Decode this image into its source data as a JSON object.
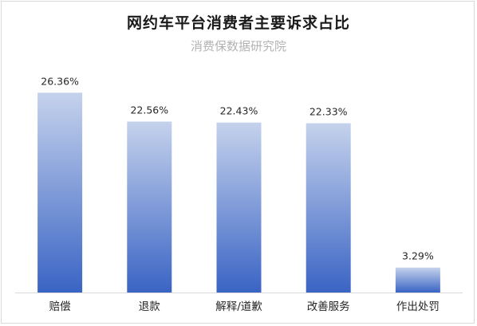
{
  "chart_data": {
    "type": "bar",
    "title": "网约车平台消费者主要诉求占比",
    "watermark": "消费保数据研究院",
    "categories": [
      "赔偿",
      "退款",
      "解释/道歉",
      "改善服务",
      "作出处罚"
    ],
    "values": [
      26.36,
      22.56,
      22.43,
      22.33,
      3.29
    ],
    "value_labels": [
      "26.36%",
      "22.56%",
      "22.43%",
      "22.33%",
      "3.29%"
    ],
    "ylim": [
      0,
      30
    ],
    "grid": false,
    "legend": "none",
    "bar_color_top": "#c5d2ec",
    "bar_color_bottom": "#3a64c4",
    "axis_color": "#d9d9d9"
  }
}
